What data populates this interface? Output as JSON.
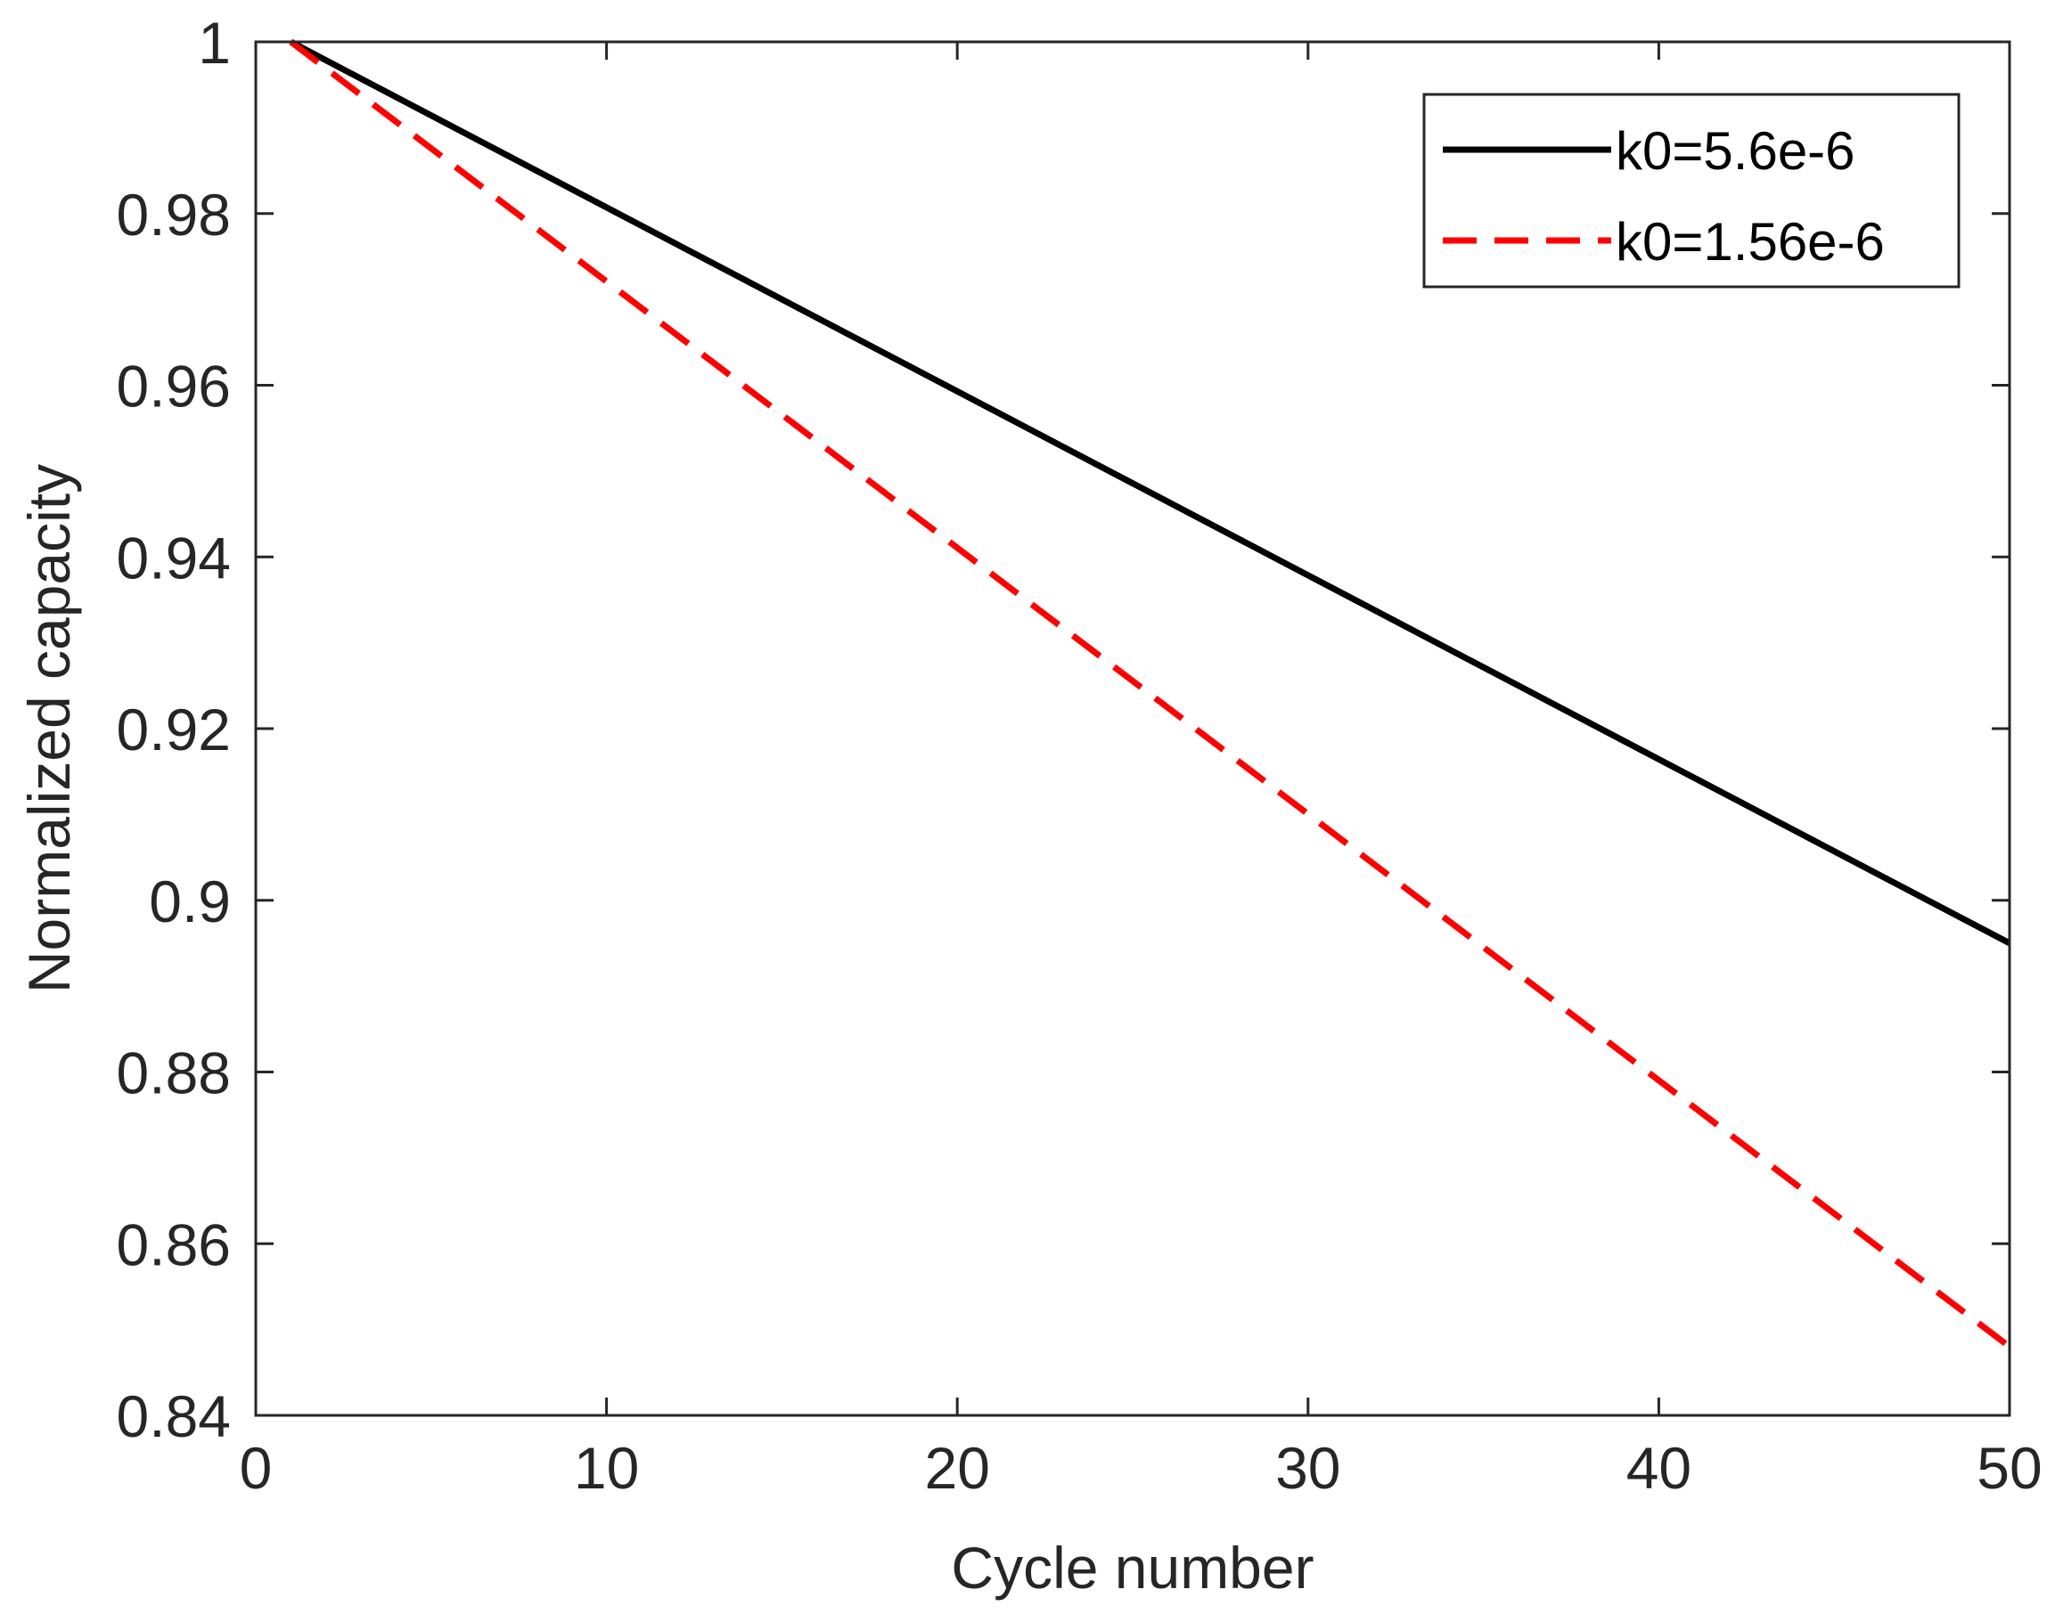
{
  "chart_data": {
    "type": "line",
    "title": "",
    "xlabel": "Cycle number",
    "ylabel": "Normalized capacity",
    "xlim": [
      0,
      50
    ],
    "ylim": [
      0.84,
      1.0
    ],
    "xticks": [
      0,
      10,
      20,
      30,
      40,
      50
    ],
    "yticks": [
      0.84,
      0.86,
      0.88,
      0.9,
      0.92,
      0.94,
      0.96,
      0.98,
      1.0
    ],
    "xtick_labels": [
      "0",
      "10",
      "20",
      "30",
      "40",
      "50"
    ],
    "ytick_labels": [
      "0.84",
      "0.86",
      "0.88",
      "0.9",
      "0.92",
      "0.94",
      "0.96",
      "0.98",
      "1"
    ],
    "grid": false,
    "legend_position": "top-right",
    "series": [
      {
        "name": "k0=5.6e-6",
        "color": "#000000",
        "style": "solid",
        "x": [
          1,
          50
        ],
        "y": [
          1.0,
          0.895
        ]
      },
      {
        "name": "k0=1.56e-6",
        "color": "#ff0000",
        "style": "dashed",
        "x": [
          1,
          50
        ],
        "y": [
          1.0,
          0.848
        ]
      }
    ]
  }
}
